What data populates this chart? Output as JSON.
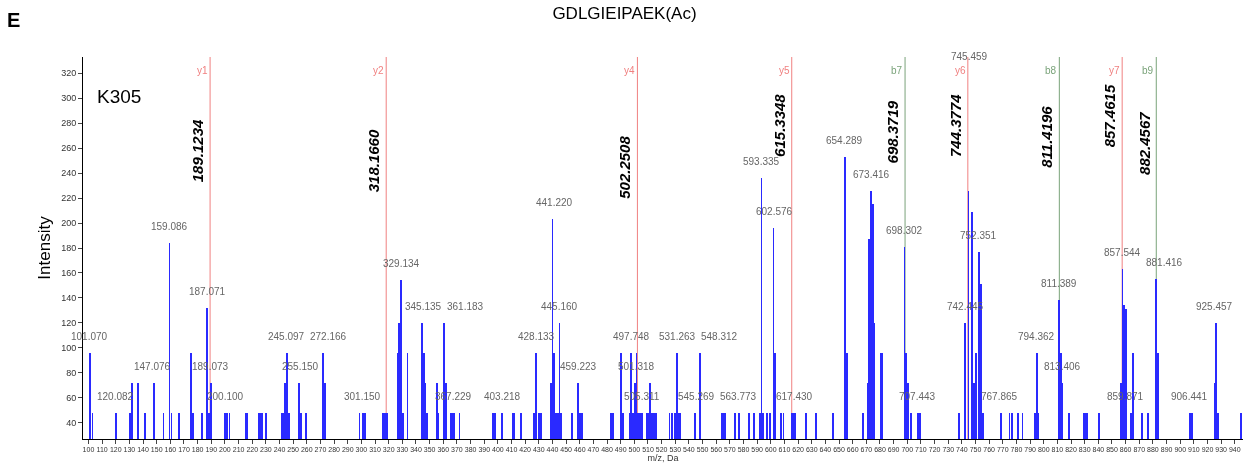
{
  "chart_data": {
    "type": "bar",
    "title": "GDLGIEIPAEK(Ac)",
    "xlabel": "m/z, Da",
    "ylabel": "Intensity",
    "color": "#2a2aff",
    "x": [
      101.2,
      102.9,
      120.4,
      130.3,
      132,
      136.4,
      141.5,
      147.8,
      155,
      159.4,
      160.8,
      166.5,
      175.2,
      176.7,
      183.2,
      187.1,
      188.3,
      189.7,
      200.2,
      201.6,
      203.3,
      215.2,
      216.6,
      224.6,
      225.9,
      227.2,
      230,
      241.6,
      242.9,
      244.2,
      245.5,
      246.8,
      254.3,
      255.6,
      259.6,
      272,
      273.4,
      298.6,
      301.3,
      302.6,
      315.8,
      317.1,
      318.6,
      326.4,
      327.7,
      329,
      330.3,
      333.8,
      344.4,
      345.7,
      347,
      348.3,
      355.2,
      356.5,
      360.7,
      362,
      365.4,
      366.7,
      368,
      371.9,
      396.3,
      397.8,
      402.9,
      410.9,
      412.2,
      416.8,
      426.6,
      427.9,
      430.3,
      431.6,
      438.7,
      440,
      441.3,
      442.6,
      443.9,
      445.2,
      446.5,
      454.1,
      458.9,
      460.2,
      461.5,
      482.8,
      484.5,
      490.2,
      491.5,
      496.4,
      497.7,
      499,
      500.3,
      501.6,
      502.9,
      504.2,
      505.5,
      509.1,
      510.4,
      511.7,
      513,
      514.3,
      515.6,
      525.7,
      527.4,
      529.8,
      531.1,
      532.4,
      533.7,
      544.7,
      548.1,
      563.8,
      565.1,
      566.4,
      573.5,
      576.9,
      584.2,
      587.4,
      591.9,
      593.2,
      594.5,
      597.1,
      599.5,
      602,
      603.3,
      607.6,
      609.3,
      615.1,
      616.4,
      617.7,
      625.9,
      633.4,
      645.4,
      653.3,
      654.6,
      655.9,
      667.3,
      670.8,
      672.1,
      673.4,
      674.7,
      676,
      680.6,
      681.9,
      697.9,
      699.2,
      700.5,
      702.9,
      708,
      709.4,
      737.9,
      742.3,
      743.6,
      744.9,
      746.2,
      747.5,
      748.8,
      750.1,
      752.7,
      754,
      755.3,
      768.6,
      774.9,
      776.9,
      781.3,
      784.4,
      793.6,
      794.9,
      796.2,
      811.2,
      812.5,
      813.8,
      818.3,
      829.5,
      830.8,
      832.1,
      840.2,
      856.4,
      857.7,
      859,
      860.3,
      863.9,
      865.2,
      871.8,
      876.4,
      880.9,
      882.2,
      883.5,
      907.1,
      908.8,
      925.1,
      926.4,
      927.7,
      944.4
    ],
    "values": [
      96,
      48,
      48,
      48,
      72,
      72,
      48,
      72,
      48,
      184,
      48,
      48,
      96,
      48,
      48,
      132,
      48,
      72,
      48,
      48,
      48,
      48,
      48,
      48,
      48,
      48,
      48,
      48,
      48,
      72,
      96,
      48,
      72,
      48,
      48,
      96,
      72,
      48,
      48,
      48,
      48,
      48,
      48,
      96,
      120,
      154,
      48,
      96,
      120,
      96,
      72,
      48,
      72,
      48,
      120,
      72,
      48,
      48,
      48,
      48,
      48,
      48,
      48,
      48,
      48,
      48,
      48,
      96,
      48,
      48,
      72,
      203,
      96,
      48,
      48,
      120,
      48,
      48,
      72,
      48,
      48,
      48,
      48,
      96,
      48,
      48,
      96,
      48,
      72,
      96,
      48,
      48,
      48,
      48,
      48,
      72,
      48,
      48,
      48,
      48,
      48,
      48,
      96,
      48,
      48,
      48,
      96,
      48,
      48,
      48,
      48,
      48,
      48,
      48,
      48,
      236,
      48,
      48,
      48,
      196,
      96,
      48,
      48,
      48,
      48,
      48,
      48,
      48,
      48,
      null,
      253,
      96,
      48,
      72,
      187,
      226,
      215,
      120,
      96,
      96,
      181,
      96,
      72,
      48,
      48,
      48,
      48,
      120,
      null,
      226,
      null,
      209,
      72,
      96,
      177,
      151,
      48,
      48,
      48,
      48,
      48,
      48,
      48,
      96,
      48,
      138,
      96,
      72,
      48,
      48,
      48,
      48,
      48,
      72,
      163,
      134,
      131,
      48,
      96,
      48,
      48,
      null,
      155,
      96,
      48,
      48,
      72,
      120,
      48,
      48
    ],
    "xlim": [
      96,
      946
    ],
    "ylim": [
      27,
      333
    ],
    "xticks": [
      100,
      110,
      120,
      130,
      140,
      150,
      160,
      170,
      180,
      190,
      200,
      210,
      220,
      230,
      240,
      250,
      260,
      270,
      280,
      290,
      300,
      310,
      320,
      330,
      340,
      350,
      360,
      370,
      380,
      390,
      400,
      410,
      420,
      430,
      440,
      450,
      460,
      470,
      480,
      490,
      500,
      510,
      520,
      530,
      540,
      550,
      560,
      570,
      580,
      590,
      600,
      610,
      620,
      630,
      640,
      650,
      660,
      670,
      680,
      690,
      700,
      710,
      720,
      730,
      740,
      750,
      760,
      770,
      780,
      790,
      800,
      810,
      820,
      830,
      840,
      850,
      860,
      870,
      880,
      890,
      900,
      910,
      920,
      930,
      940
    ],
    "yticks": [
      40,
      60,
      80,
      100,
      120,
      140,
      160,
      180,
      200,
      220,
      240,
      260,
      280,
      300,
      320
    ],
    "ref_lines": [
      {
        "axis": "x",
        "value": 189.1234,
        "label": "y1",
        "color": "#f08080"
      },
      {
        "axis": "x",
        "value": 318.166,
        "label": "y2",
        "color": "#f08080"
      },
      {
        "axis": "x",
        "value": 502.2508,
        "label": "y4",
        "color": "#f08080"
      },
      {
        "axis": "x",
        "value": 615.3348,
        "label": "y5",
        "color": "#f08080"
      },
      {
        "axis": "x",
        "value": 698.3719,
        "label": "b7",
        "color": "#7aa37a"
      },
      {
        "axis": "x",
        "value": 744.3774,
        "label": "y6",
        "color": "#f08080"
      },
      {
        "axis": "x",
        "value": 811.4196,
        "label": "b8",
        "color": "#7aa37a"
      },
      {
        "axis": "x",
        "value": 857.4615,
        "label": "y7",
        "color": "#f08080"
      },
      {
        "axis": "x",
        "value": 882.4567,
        "label": "b9",
        "color": "#7aa37a"
      }
    ],
    "annotations": [
      "E",
      "K305",
      {
        "text": "189.1234",
        "x": 189.1234,
        "y": 258
      },
      {
        "text": "318.1660",
        "x": 318.166,
        "y": 250
      },
      {
        "text": "502.2508",
        "x": 502.2508,
        "y": 245
      },
      {
        "text": "615.3348",
        "x": 615.3348,
        "y": 278
      },
      {
        "text": "698.3719",
        "x": 698.3719,
        "y": 273
      },
      {
        "text": "744.3774",
        "x": 744.3774,
        "y": 278
      },
      {
        "text": "811.4196",
        "x": 811.4196,
        "y": 269
      },
      {
        "text": "857.4615",
        "x": 857.4615,
        "y": 286
      },
      {
        "text": "882.4567",
        "x": 882.4567,
        "y": 264
      },
      {
        "text": "101.070",
        "x": 101.07,
        "y": 96
      },
      {
        "text": "120.082",
        "x": 120.082,
        "y": 48
      },
      {
        "text": "147.076",
        "x": 147.076,
        "y": 72
      },
      {
        "text": "159.086",
        "x": 159.086,
        "y": 184
      },
      {
        "text": "187.071",
        "x": 187.071,
        "y": 132
      },
      {
        "text": "189.073",
        "x": 189.073,
        "y": 72
      },
      {
        "text": "200.100",
        "x": 200.1,
        "y": 48
      },
      {
        "text": "245.097",
        "x": 245.097,
        "y": 96
      },
      {
        "text": "255.150",
        "x": 255.15,
        "y": 72
      },
      {
        "text": "272.166",
        "x": 272.166,
        "y": 96
      },
      {
        "text": "301.150",
        "x": 301.15,
        "y": 48
      },
      {
        "text": "329.134",
        "x": 329.134,
        "y": 154
      },
      {
        "text": "345.135",
        "x": 345.135,
        "y": 120
      },
      {
        "text": "361.183",
        "x": 361.183,
        "y": 120
      },
      {
        "text": "367.229",
        "x": 367.229,
        "y": 48
      },
      {
        "text": "403.218",
        "x": 403.218,
        "y": 48
      },
      {
        "text": "428.133",
        "x": 428.133,
        "y": 96
      },
      {
        "text": "441.220",
        "x": 441.22,
        "y": 203
      },
      {
        "text": "445.160",
        "x": 445.16,
        "y": 120
      },
      {
        "text": "459.223",
        "x": 459.223,
        "y": 72
      },
      {
        "text": "497.748",
        "x": 497.748,
        "y": 96
      },
      {
        "text": "501.318",
        "x": 501.318,
        "y": 72
      },
      {
        "text": "505.311",
        "x": 505.311,
        "y": 48
      },
      {
        "text": "531.263",
        "x": 531.263,
        "y": 96
      },
      {
        "text": "545.269",
        "x": 545.269,
        "y": 48
      },
      {
        "text": "548.312",
        "x": 548.312,
        "y": 96
      },
      {
        "text": "563.773",
        "x": 563.773,
        "y": 48
      },
      {
        "text": "593.335",
        "x": 593.335,
        "y": 236
      },
      {
        "text": "602.576",
        "x": 602.576,
        "y": 196
      },
      {
        "text": "617.430",
        "x": 617.43,
        "y": 48
      },
      {
        "text": "654.289",
        "x": 654.289,
        "y": 253
      },
      {
        "text": "673.416",
        "x": 673.416,
        "y": 226
      },
      {
        "text": "698.302",
        "x": 698.302,
        "y": 181
      },
      {
        "text": "707.443",
        "x": 707.443,
        "y": 48
      },
      {
        "text": "742.445",
        "x": 742.445,
        "y": 120
      },
      {
        "text": "745.459",
        "x": 745.459,
        "y": 320
      },
      {
        "text": "752.351",
        "x": 752.351,
        "y": 177
      },
      {
        "text": "767.865",
        "x": 767.865,
        "y": 48
      },
      {
        "text": "794.362",
        "x": 794.362,
        "y": 96
      },
      {
        "text": "811.389",
        "x": 811.389,
        "y": 138
      },
      {
        "text": "813.406",
        "x": 813.406,
        "y": 72
      },
      {
        "text": "857.544",
        "x": 857.544,
        "y": 163
      },
      {
        "text": "859.871",
        "x": 859.871,
        "y": 48
      },
      {
        "text": "881.416",
        "x": 881.416,
        "y": 155
      },
      {
        "text": "906.441",
        "x": 906.441,
        "y": 48
      },
      {
        "text": "925.457",
        "x": 925.457,
        "y": 120
      }
    ]
  }
}
